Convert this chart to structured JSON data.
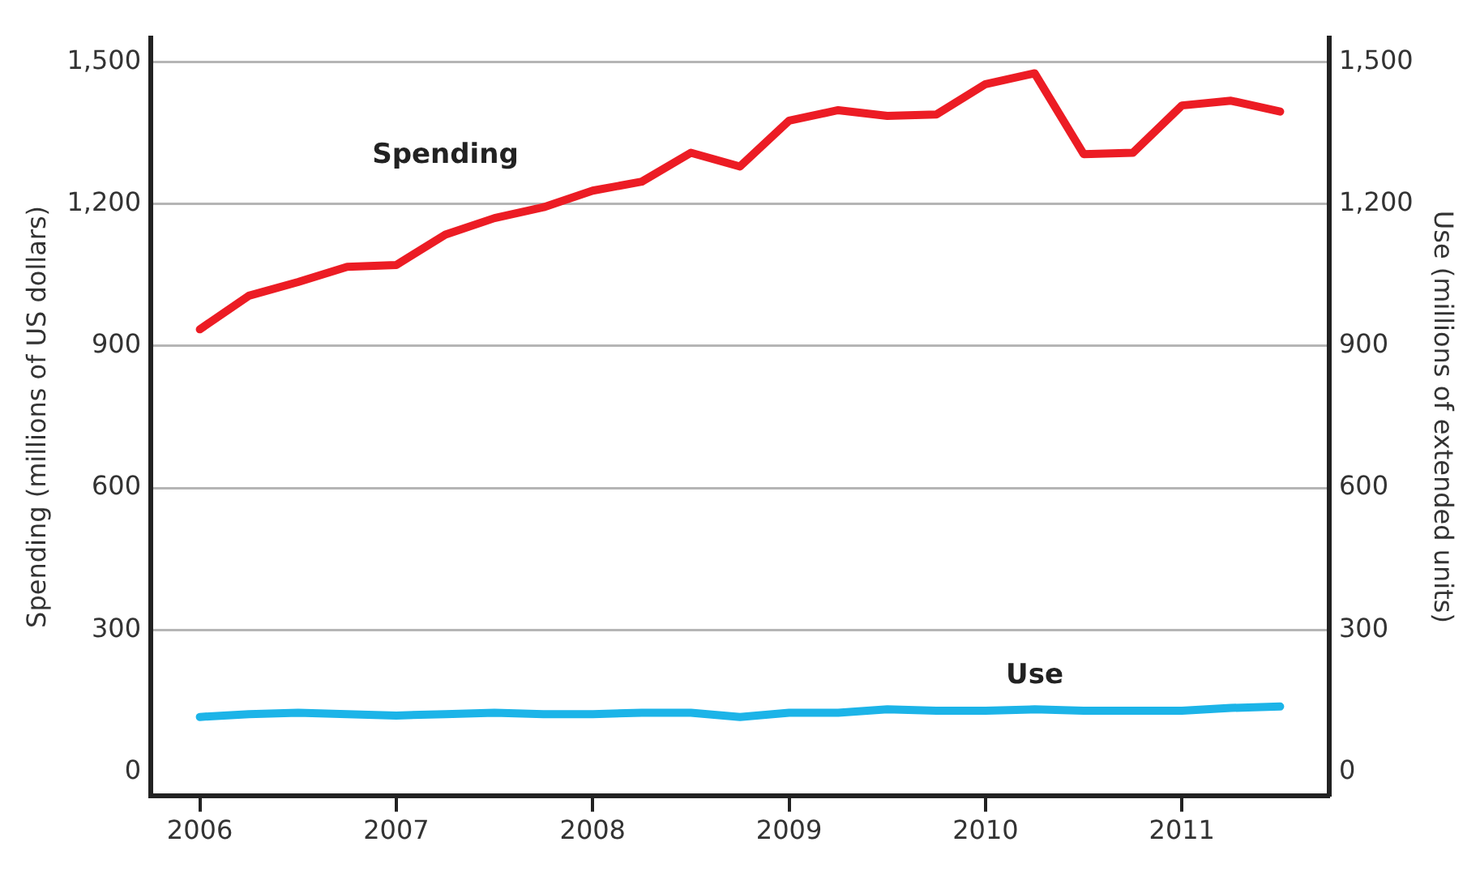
{
  "chart_data": {
    "type": "line",
    "ylabel": "Spending (millions of US dollars)",
    "y2label": "Use (millions of extended units)",
    "x": [
      2006,
      2006.25,
      2006.5,
      2006.75,
      2007,
      2007.25,
      2007.5,
      2007.75,
      2008,
      2008.25,
      2008.5,
      2008.75,
      2009,
      2009.25,
      2009.5,
      2009.75,
      2010,
      2010.25,
      2010.5,
      2010.75,
      2011,
      2011.25,
      2011.5
    ],
    "xlim": [
      2005.75,
      2011.75
    ],
    "xticks": [
      2006,
      2007,
      2008,
      2009,
      2010,
      2011
    ],
    "ylim": [
      -50,
      1550
    ],
    "yticks": [
      0,
      300,
      600,
      900,
      {
        "value": 1200,
        "label": "1,200"
      },
      {
        "value": 1500,
        "label": "1,500"
      }
    ],
    "y2lim": [
      -50,
      1550
    ],
    "y2ticks": [
      0,
      300,
      600,
      900,
      {
        "value": 1200,
        "label": "1,200"
      },
      {
        "value": 1500,
        "label": "1,500"
      }
    ],
    "grid": "y",
    "legend": false,
    "marker": "none",
    "line_style": "solid",
    "series": [
      {
        "name": "Spending",
        "color": "#ec1c24",
        "values": [
          935,
          1006,
          1035,
          1067,
          1071,
          1135,
          1170,
          1193,
          1228,
          1247,
          1308,
          1279,
          1376,
          1398,
          1386,
          1389,
          1453,
          1476,
          1305,
          1308,
          1408,
          1418,
          1395
        ]
      },
      {
        "name": "Use",
        "color": "#1cb4e8",
        "axis": "y2",
        "values": [
          116,
          122,
          125,
          122,
          119,
          122,
          125,
          122,
          122,
          125,
          125,
          116,
          125,
          125,
          132,
          129,
          129,
          132,
          129,
          129,
          129,
          135,
          138
        ]
      }
    ]
  }
}
